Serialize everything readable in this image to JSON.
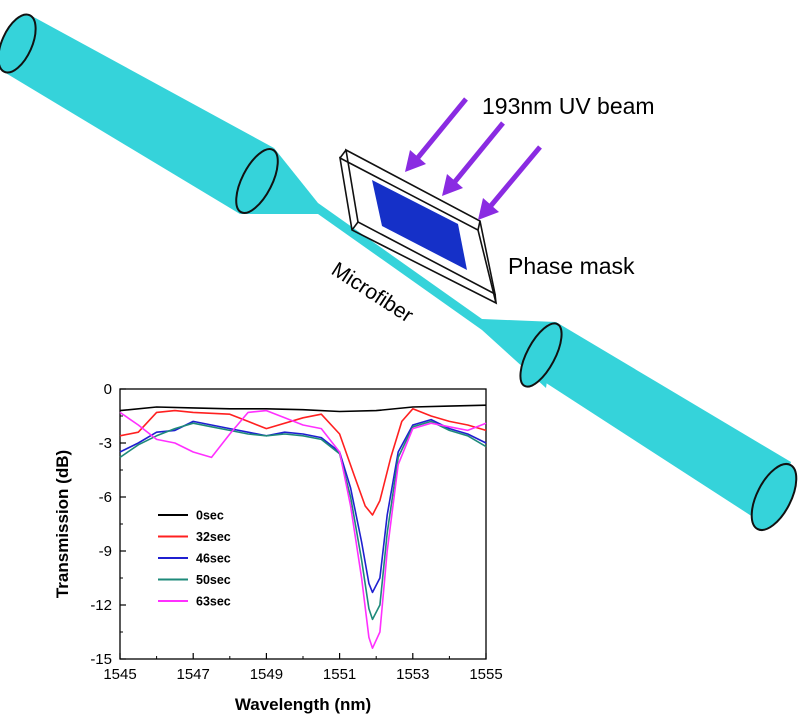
{
  "labels": {
    "uv_beam": "193nm UV beam",
    "phase_mask": "Phase mask",
    "microfiber": "Microfiber"
  },
  "colors": {
    "fiber": "#35d3da",
    "mask_fill": "#1530c8",
    "arrow": "#8a2be2"
  },
  "chart_data": {
    "type": "line",
    "xlabel": "Wavelength (nm)",
    "ylabel": "Transmission (dB)",
    "xlim": [
      1545,
      1555
    ],
    "ylim": [
      -15,
      0
    ],
    "xticks": [
      "1545",
      "1547",
      "1549",
      "1551",
      "1553",
      "1555"
    ],
    "yticks": [
      "0",
      "-3",
      "-6",
      "-9",
      "-12",
      "-15"
    ],
    "legend": "left-middle",
    "series": [
      {
        "name": "0sec",
        "color": "#000000",
        "x": [
          1545,
          1546,
          1547,
          1548,
          1549,
          1550,
          1551,
          1552,
          1553,
          1554,
          1555
        ],
        "y": [
          -1.2,
          -1.0,
          -1.05,
          -1.1,
          -1.1,
          -1.15,
          -1.25,
          -1.2,
          -1.0,
          -0.95,
          -0.9
        ]
      },
      {
        "name": "32sec",
        "color": "#ff2020",
        "x": [
          1545,
          1545.5,
          1546,
          1546.5,
          1547,
          1548,
          1548.5,
          1549,
          1550,
          1550.5,
          1551,
          1551.4,
          1551.7,
          1551.9,
          1552.1,
          1552.4,
          1552.7,
          1553,
          1553.5,
          1554,
          1554.5,
          1555
        ],
        "y": [
          -2.6,
          -2.4,
          -1.3,
          -1.2,
          -1.3,
          -1.4,
          -1.8,
          -2.2,
          -1.6,
          -1.4,
          -2.5,
          -4.8,
          -6.5,
          -7.0,
          -6.2,
          -3.8,
          -1.8,
          -1.1,
          -1.5,
          -1.8,
          -2.0,
          -2.3
        ]
      },
      {
        "name": "46sec",
        "color": "#1f1fd0",
        "x": [
          1545,
          1545.5,
          1546,
          1546.5,
          1547,
          1547.5,
          1548,
          1548.5,
          1549,
          1549.5,
          1550,
          1550.5,
          1551,
          1551.3,
          1551.6,
          1551.8,
          1551.9,
          1552.1,
          1552.3,
          1552.6,
          1553,
          1553.5,
          1554,
          1554.5,
          1555
        ],
        "y": [
          -3.5,
          -3.0,
          -2.4,
          -2.3,
          -1.8,
          -2.0,
          -2.2,
          -2.4,
          -2.6,
          -2.4,
          -2.5,
          -2.7,
          -3.5,
          -5.5,
          -8.5,
          -10.8,
          -11.3,
          -10.5,
          -7.0,
          -3.5,
          -2.0,
          -1.7,
          -2.2,
          -2.5,
          -3.0
        ]
      },
      {
        "name": "50sec",
        "color": "#1e8a7a",
        "x": [
          1545,
          1545.5,
          1546,
          1546.5,
          1547,
          1547.5,
          1548,
          1548.5,
          1549,
          1549.5,
          1550,
          1550.5,
          1551,
          1551.3,
          1551.6,
          1551.8,
          1551.9,
          1552.1,
          1552.3,
          1552.6,
          1553,
          1553.5,
          1554,
          1554.5,
          1555
        ],
        "y": [
          -3.8,
          -3.1,
          -2.6,
          -2.2,
          -1.9,
          -2.1,
          -2.3,
          -2.5,
          -2.6,
          -2.5,
          -2.6,
          -2.8,
          -3.6,
          -6.0,
          -9.5,
          -12.2,
          -12.8,
          -12.0,
          -8.0,
          -3.8,
          -2.1,
          -1.8,
          -2.3,
          -2.6,
          -3.2
        ]
      },
      {
        "name": "63sec",
        "color": "#ff30ff",
        "x": [
          1545,
          1545.5,
          1546,
          1546.5,
          1547,
          1547.5,
          1548,
          1548.5,
          1549,
          1549.5,
          1550,
          1550.5,
          1551,
          1551.3,
          1551.6,
          1551.8,
          1551.9,
          1552.1,
          1552.3,
          1552.6,
          1553,
          1553.5,
          1554,
          1554.5,
          1555
        ],
        "y": [
          -1.3,
          -2.0,
          -2.8,
          -3.0,
          -3.5,
          -3.8,
          -2.5,
          -1.3,
          -1.2,
          -1.6,
          -2.0,
          -2.2,
          -3.5,
          -6.5,
          -10.5,
          -13.8,
          -14.4,
          -13.5,
          -9.0,
          -4.2,
          -2.2,
          -1.9,
          -2.1,
          -2.3,
          -1.9
        ]
      }
    ]
  }
}
